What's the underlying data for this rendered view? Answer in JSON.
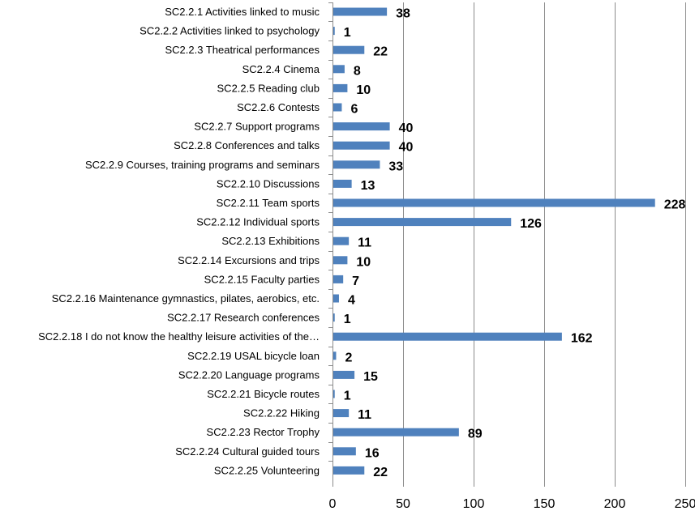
{
  "chart_data": {
    "type": "bar",
    "orientation": "horizontal",
    "categories": [
      "SC2.2.1 Activities linked to music",
      "SC2.2.2 Activities linked to psychology",
      "SC2.2.3 Theatrical performances",
      "SC2.2.4 Cinema",
      "SC2.2.5 Reading club",
      "SC2.2.6 Contests",
      "SC2.2.7 Support programs",
      "SC2.2.8 Conferences and talks",
      "SC2.2.9 Courses, training programs and seminars",
      "SC2.2.10 Discussions",
      "SC2.2.11 Team sports",
      "SC2.2.12 Individual sports",
      "SC2.2.13 Exhibitions",
      "SC2.2.14 Excursions and trips",
      "SC2.2.15 Faculty parties",
      "SC2.2.16 Maintenance gymnastics, pilates, aerobics, etc.",
      "SC2.2.17 Research conferences",
      "SC2.2.18 I do not know the healthy leisure activities of the…",
      "SC2.2.19 USAL bicycle loan",
      "SC2.2.20 Language programs",
      "SC2.2.21 Bicycle routes",
      "SC2.2.22 Hiking",
      "SC2.2.23 Rector Trophy",
      "SC2.2.24 Cultural guided tours",
      "SC2.2.25 Volunteering"
    ],
    "values": [
      38,
      1,
      22,
      8,
      10,
      6,
      40,
      40,
      33,
      13,
      228,
      126,
      11,
      10,
      7,
      4,
      1,
      162,
      2,
      15,
      1,
      11,
      89,
      16,
      22
    ],
    "xlim": [
      0,
      250
    ],
    "xticks": [
      0,
      50,
      100,
      150,
      200,
      250
    ],
    "title": "",
    "xlabel": "",
    "ylabel": "",
    "grid": true,
    "bar_color": "#4f81bd",
    "grid_color": "#8c8c8c"
  }
}
